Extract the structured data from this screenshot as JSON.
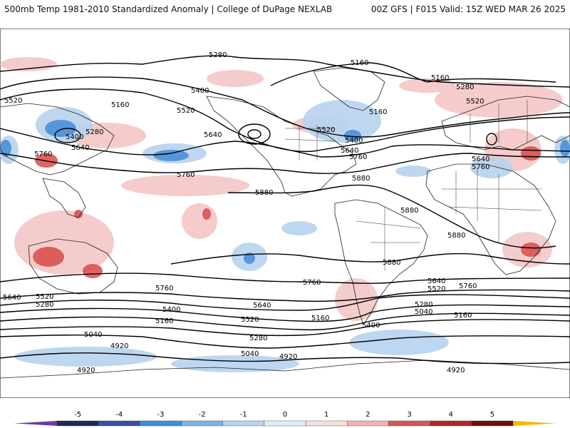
{
  "header": {
    "left_title": "500mb Temp 1981-2010 Standardized Anomaly | College of DuPage NEXLAB",
    "right_title": "00Z GFS | F015 Valid: 15Z WED MAR 26 2025"
  },
  "contour_labels": [
    "5280",
    "5160",
    "5520",
    "5400",
    "5640",
    "5760",
    "5880",
    "5040",
    "4920"
  ],
  "colorbar": {
    "ticks": [
      "-5",
      "-4",
      "-3",
      "-2",
      "-1",
      "0",
      "1",
      "2",
      "3",
      "4",
      "5"
    ],
    "colors": [
      "#1f2a5c",
      "#3a4fa3",
      "#3c8fd6",
      "#7ab2e3",
      "#b7d3ee",
      "#e3edf7",
      "#f9dede",
      "#f2b1b1",
      "#d95555",
      "#b42525",
      "#6e0e0e"
    ],
    "low_end_color": "#6a3d9a",
    "high_end_color": "#f5b800"
  },
  "colors": {
    "cold_anomaly": "#4a90d9",
    "warm_anomaly": "#d94a4a",
    "land_outline": "#222222"
  }
}
